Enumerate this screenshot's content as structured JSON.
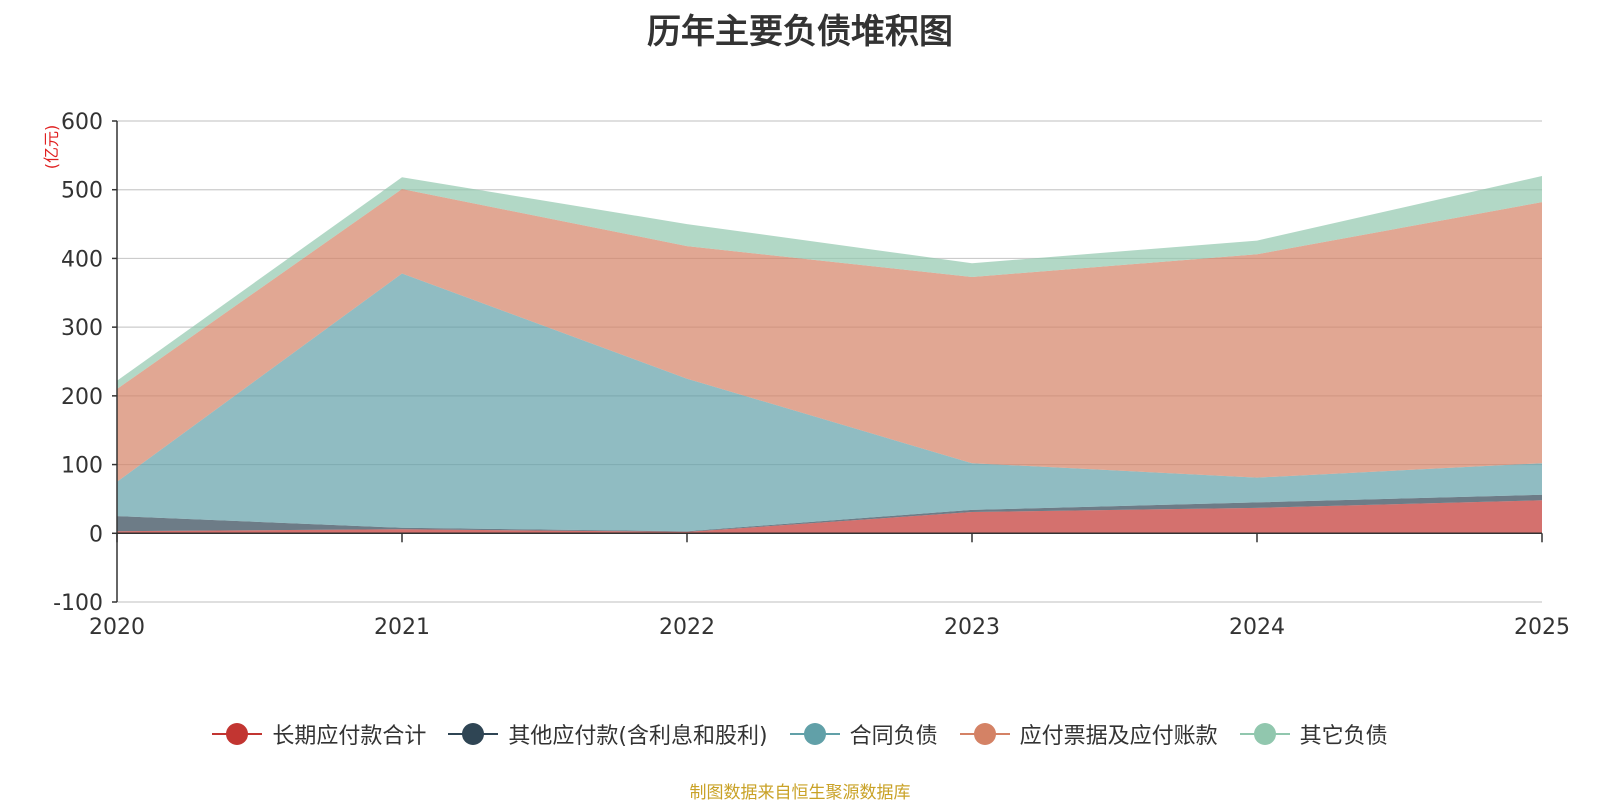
{
  "chart_data": {
    "type": "area",
    "stacked": true,
    "title": "历年主要负债堆积图",
    "unit_label": "(亿元)",
    "x": [
      "2020",
      "2021",
      "2022",
      "2023",
      "2024",
      "2025"
    ],
    "ylim": [
      -100,
      600
    ],
    "yticks": [
      600,
      500,
      400,
      300,
      200,
      100,
      0,
      -100
    ],
    "grid": true,
    "legend_position": "bottom",
    "series": [
      {
        "name": "长期应付款合计",
        "color": "#c23531",
        "values": [
          3,
          6,
          2,
          31,
          37,
          48
        ]
      },
      {
        "name": "其他应付款(含利息和股利)",
        "color": "#2f4554",
        "values": [
          22,
          2,
          1,
          3,
          8,
          8
        ]
      },
      {
        "name": "合同负债",
        "color": "#61a0a8",
        "values": [
          50,
          370,
          222,
          68,
          36,
          46
        ]
      },
      {
        "name": "应付票据及应付账款",
        "color": "#d48265",
        "values": [
          135,
          123,
          193,
          271,
          325,
          380
        ]
      },
      {
        "name": "其它负债",
        "color": "#91c7ae",
        "values": [
          12,
          17,
          32,
          20,
          20,
          38
        ]
      }
    ]
  },
  "footer": {
    "source": "制图数据来自恒生聚源数据库"
  }
}
